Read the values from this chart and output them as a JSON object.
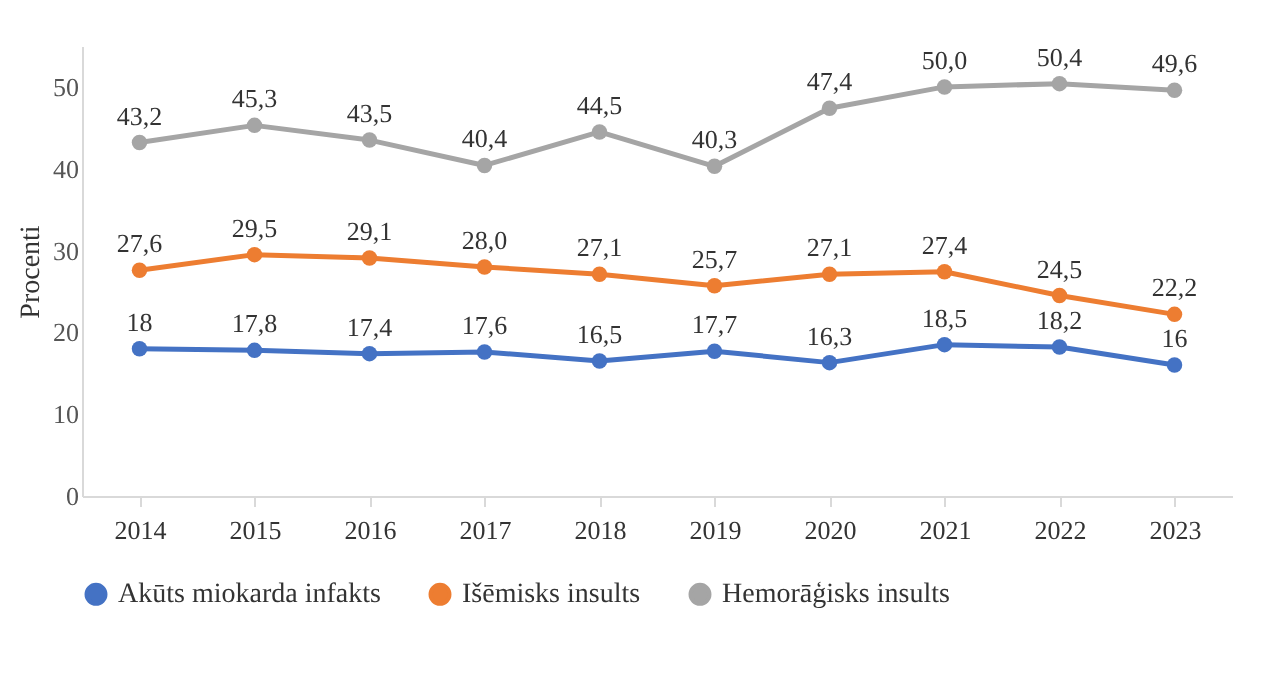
{
  "chart_data": {
    "type": "line",
    "ylabel": "Procenti",
    "categories": [
      "2014",
      "2015",
      "2016",
      "2017",
      "2018",
      "2019",
      "2020",
      "2021",
      "2022",
      "2023"
    ],
    "series": [
      {
        "name": "Akūts miokarda infakts",
        "color": "#4472c4",
        "values": [
          18,
          17.8,
          17.4,
          17.6,
          16.5,
          17.7,
          16.3,
          18.5,
          18.2,
          16
        ],
        "value_labels": [
          "18",
          "17,8",
          "17,4",
          "17,6",
          "16,5",
          "17,7",
          "16,3",
          "18,5",
          "18,2",
          "16"
        ]
      },
      {
        "name": "Išēmisks insults",
        "color": "#ed7d31",
        "values": [
          27.6,
          29.5,
          29.1,
          28,
          27.1,
          25.7,
          27.1,
          27.4,
          24.5,
          22.2
        ],
        "value_labels": [
          "27,6",
          "29,5",
          "29,1",
          "28,0",
          "27,1",
          "25,7",
          "27,1",
          "27,4",
          "24,5",
          "22,2"
        ]
      },
      {
        "name": "Hemorāģisks insults",
        "color": "#a5a5a5",
        "values": [
          43.2,
          45.3,
          43.5,
          40.4,
          44.5,
          40.3,
          47.4,
          50,
          50.4,
          49.6
        ],
        "value_labels": [
          "43,2",
          "45,3",
          "43,5",
          "40,4",
          "44,5",
          "40,3",
          "47,4",
          "50,0",
          "50,4",
          "49,6"
        ]
      }
    ],
    "ylim": [
      0,
      55
    ],
    "yticks": [
      0,
      10,
      20,
      30,
      40,
      50
    ],
    "grid": false,
    "legend": "bottom",
    "marker": "circle",
    "line_style": "solid"
  }
}
